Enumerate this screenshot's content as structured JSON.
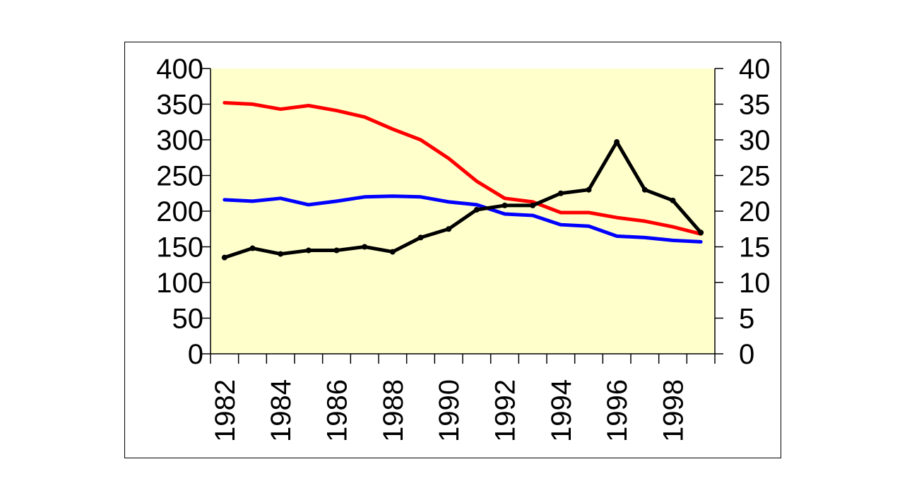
{
  "chart_data": {
    "type": "line",
    "x": [
      1982,
      1983,
      1984,
      1985,
      1986,
      1987,
      1988,
      1989,
      1990,
      1991,
      1992,
      1993,
      1994,
      1995,
      1996,
      1997,
      1998,
      1999
    ],
    "x_tick_labels": [
      "1982",
      "1984",
      "1986",
      "1988",
      "1990",
      "1992",
      "1994",
      "1996",
      "1998"
    ],
    "y_left_ticks": [
      "0",
      "50",
      "100",
      "150",
      "200",
      "250",
      "300",
      "350",
      "400"
    ],
    "y_right_ticks": [
      "0",
      "5",
      "10",
      "15",
      "20",
      "25",
      "30",
      "35",
      "40"
    ],
    "ylim_left": [
      0,
      400
    ],
    "ylim_right": [
      0,
      40
    ],
    "plot_background": "#FFFFCC",
    "grid": false,
    "series": [
      {
        "color": "#FF0000",
        "axis": "left",
        "values": [
          352,
          350,
          343,
          348,
          341,
          332,
          315,
          300,
          274,
          242,
          218,
          213,
          198,
          198,
          191,
          186,
          178,
          168
        ]
      },
      {
        "color": "#0000FF",
        "axis": "left",
        "values": [
          216,
          214,
          218,
          209,
          214,
          220,
          221,
          220,
          213,
          209,
          196,
          194,
          181,
          179,
          165,
          163,
          159,
          157
        ]
      },
      {
        "color": "#000000",
        "axis": "right",
        "markers": true,
        "values": [
          13.5,
          14.8,
          14.0,
          14.5,
          14.5,
          15.0,
          14.3,
          16.3,
          17.5,
          20.2,
          20.8,
          20.8,
          22.5,
          23.0,
          29.7,
          23.0,
          21.5,
          17.0
        ]
      }
    ]
  }
}
